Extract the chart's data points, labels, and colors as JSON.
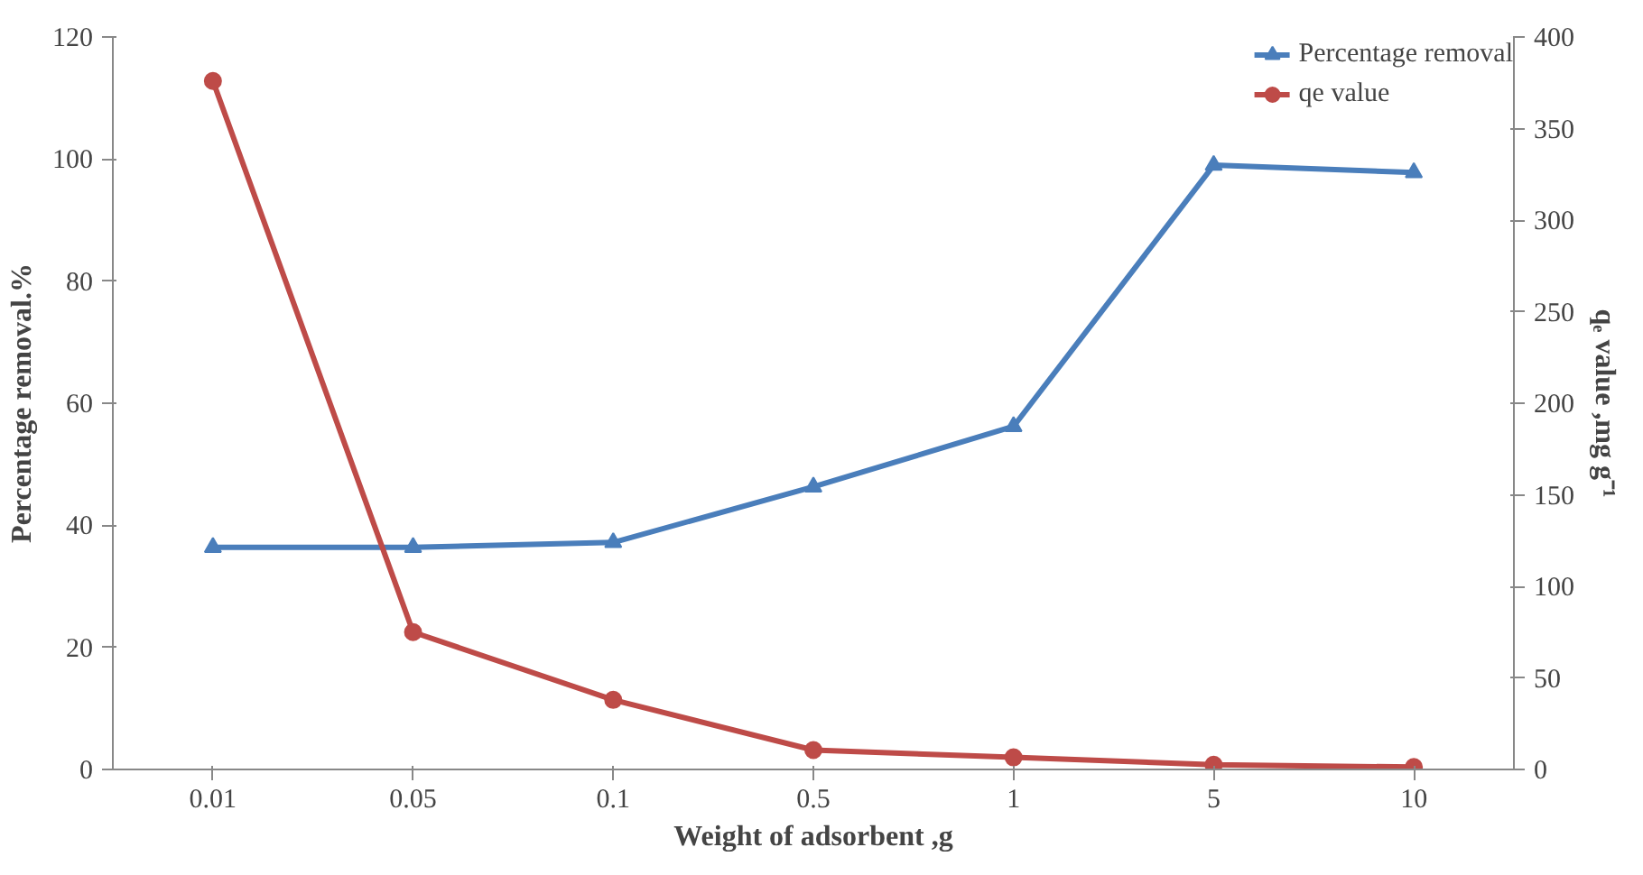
{
  "chart_data": {
    "type": "line",
    "xlabel": "Weight of adsorbent ,g",
    "ylabel": "Percentage removal.%",
    "y2label": "qₑ value ,mg g⁻¹",
    "categories": [
      "0.01",
      "0.05",
      "0.1",
      "0.5",
      "1",
      "5",
      "10"
    ],
    "series": [
      {
        "name": "Percentage removal",
        "color": "#4a7ebb",
        "marker": "triangle",
        "values": [
          36.4,
          36.4,
          37.2,
          46.3,
          56.2,
          99,
          97.8
        ]
      },
      {
        "name": "qe value",
        "color": "#be4b48",
        "marker": "circle",
        "axis": "y2",
        "values": [
          376,
          75,
          38,
          10.6,
          6.6,
          2.6,
          1.3
        ]
      }
    ],
    "ylim": [
      0,
      120
    ],
    "yticks": [
      0,
      20,
      40,
      60,
      80,
      100,
      120
    ],
    "y2lim": [
      0,
      400
    ],
    "y2ticks": [
      0,
      50,
      100,
      150,
      200,
      250,
      300,
      350,
      400
    ],
    "grid": false,
    "legend": "top right"
  }
}
